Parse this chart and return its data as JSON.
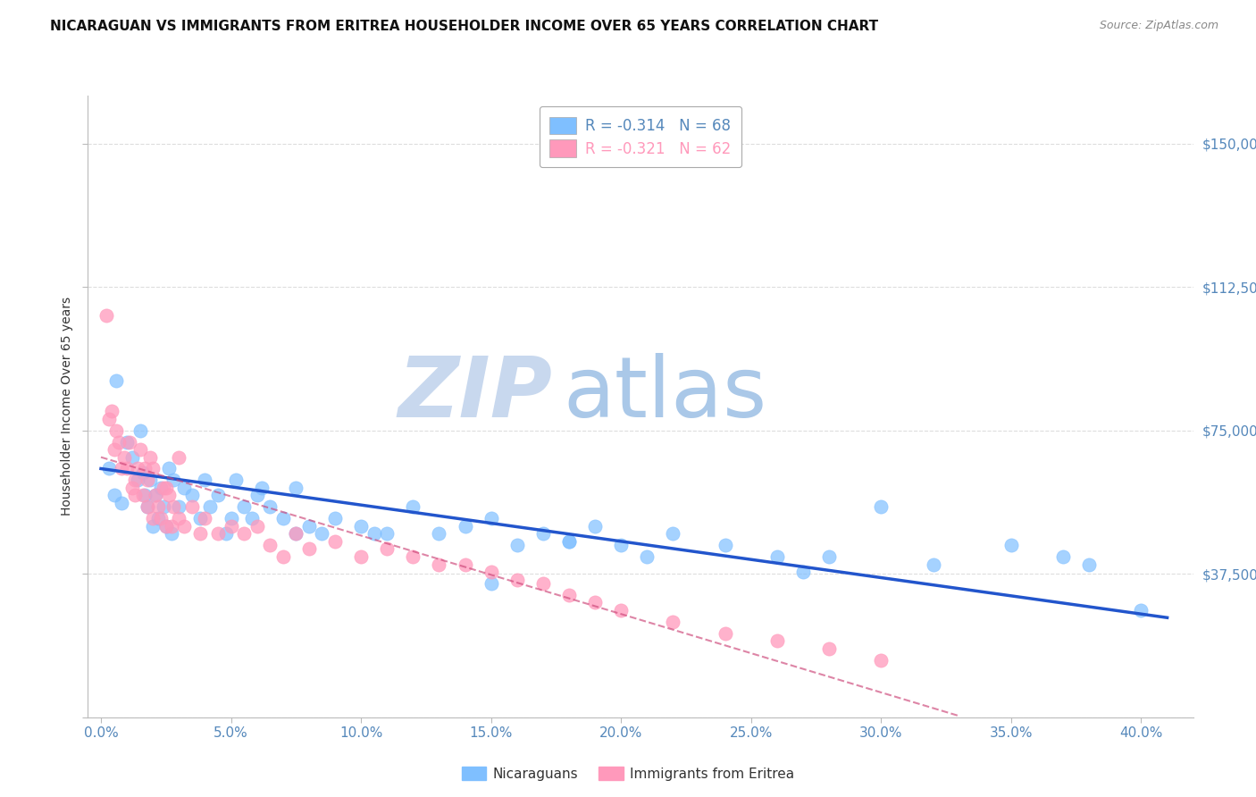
{
  "title": "NICARAGUAN VS IMMIGRANTS FROM ERITREA HOUSEHOLDER INCOME OVER 65 YEARS CORRELATION CHART",
  "source": "Source: ZipAtlas.com",
  "ylabel": "Householder Income Over 65 years",
  "xlabel_ticks": [
    "0.0%",
    "5.0%",
    "10.0%",
    "15.0%",
    "20.0%",
    "25.0%",
    "30.0%",
    "35.0%",
    "40.0%"
  ],
  "xlabel_vals": [
    0,
    5,
    10,
    15,
    20,
    25,
    30,
    35,
    40
  ],
  "ylim": [
    0,
    162500
  ],
  "xlim": [
    -0.5,
    42
  ],
  "yticks": [
    0,
    37500,
    75000,
    112500,
    150000
  ],
  "ytick_labels": [
    "",
    "$37,500",
    "$75,000",
    "$112,500",
    "$150,000"
  ],
  "legend1_text": "R = -0.314   N = 68",
  "legend2_text": "R = -0.321   N = 62",
  "blue_color": "#7fbfff",
  "pink_color": "#ff99bb",
  "blue_line_color": "#2255cc",
  "pink_line_color": "#cc4477",
  "watermark_zip": "ZIP",
  "watermark_atlas": "atlas",
  "watermark_color_zip": "#c8d8ee",
  "watermark_color_atlas": "#aac8e8",
  "title_fontsize": 11,
  "source_fontsize": 9,
  "background_color": "#ffffff",
  "grid_color": "#dddddd",
  "axis_color": "#5588bb",
  "blue_intercept": 65000,
  "blue_slope": -950,
  "pink_intercept": 68000,
  "pink_slope": -2050,
  "nicaraguan_x": [
    0.3,
    0.5,
    0.6,
    0.8,
    1.0,
    1.2,
    1.4,
    1.5,
    1.6,
    1.7,
    1.8,
    1.9,
    2.0,
    2.1,
    2.2,
    2.3,
    2.4,
    2.5,
    2.6,
    2.7,
    2.8,
    3.0,
    3.2,
    3.5,
    3.8,
    4.0,
    4.2,
    4.5,
    4.8,
    5.0,
    5.5,
    6.0,
    6.5,
    7.0,
    7.5,
    8.0,
    9.0,
    10.0,
    11.0,
    12.0,
    13.0,
    14.0,
    15.0,
    16.0,
    17.0,
    18.0,
    19.0,
    20.0,
    22.0,
    24.0,
    26.0,
    28.0,
    30.0,
    32.0,
    35.0,
    37.0,
    38.0,
    40.0,
    5.2,
    5.8,
    6.2,
    7.5,
    8.5,
    10.5,
    15.0,
    18.0,
    21.0,
    27.0
  ],
  "nicaraguan_y": [
    65000,
    58000,
    88000,
    56000,
    72000,
    68000,
    62000,
    75000,
    64000,
    58000,
    55000,
    62000,
    50000,
    58000,
    52000,
    60000,
    55000,
    50000,
    65000,
    48000,
    62000,
    55000,
    60000,
    58000,
    52000,
    62000,
    55000,
    58000,
    48000,
    52000,
    55000,
    58000,
    55000,
    52000,
    48000,
    50000,
    52000,
    50000,
    48000,
    55000,
    48000,
    50000,
    52000,
    45000,
    48000,
    46000,
    50000,
    45000,
    48000,
    45000,
    42000,
    42000,
    55000,
    40000,
    45000,
    42000,
    40000,
    28000,
    62000,
    52000,
    60000,
    60000,
    48000,
    48000,
    35000,
    46000,
    42000,
    38000
  ],
  "eritrea_x": [
    0.2,
    0.4,
    0.5,
    0.6,
    0.7,
    0.8,
    0.9,
    1.0,
    1.1,
    1.2,
    1.3,
    1.4,
    1.5,
    1.6,
    1.7,
    1.8,
    1.9,
    2.0,
    2.1,
    2.2,
    2.3,
    2.4,
    2.5,
    2.6,
    2.7,
    2.8,
    3.0,
    3.2,
    3.5,
    3.8,
    4.0,
    4.5,
    5.0,
    5.5,
    6.0,
    6.5,
    7.0,
    7.5,
    8.0,
    9.0,
    10.0,
    11.0,
    12.0,
    13.0,
    14.0,
    15.0,
    16.0,
    17.0,
    18.0,
    19.0,
    20.0,
    22.0,
    24.0,
    26.0,
    28.0,
    30.0,
    3.0,
    1.3,
    2.5,
    2.0,
    1.8,
    0.3
  ],
  "eritrea_y": [
    105000,
    80000,
    70000,
    75000,
    72000,
    65000,
    68000,
    65000,
    72000,
    60000,
    58000,
    65000,
    70000,
    58000,
    65000,
    55000,
    68000,
    52000,
    58000,
    55000,
    52000,
    60000,
    50000,
    58000,
    50000,
    55000,
    52000,
    50000,
    55000,
    48000,
    52000,
    48000,
    50000,
    48000,
    50000,
    45000,
    42000,
    48000,
    44000,
    46000,
    42000,
    44000,
    42000,
    40000,
    40000,
    38000,
    36000,
    35000,
    32000,
    30000,
    28000,
    25000,
    22000,
    20000,
    18000,
    15000,
    68000,
    62000,
    60000,
    65000,
    62000,
    78000
  ]
}
